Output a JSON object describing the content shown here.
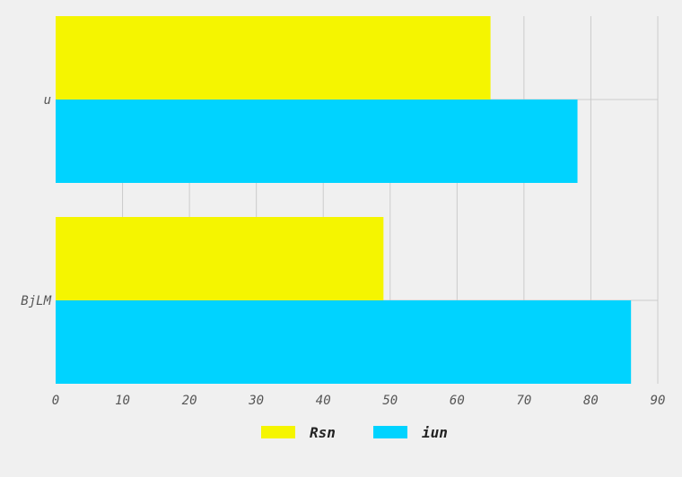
{
  "chart_data": {
    "type": "bar",
    "orientation": "horizontal",
    "categories": [
      "u",
      "BjLM"
    ],
    "series": [
      {
        "name": "Rsn",
        "values": [
          65,
          49
        ],
        "color": "#f5f500"
      },
      {
        "name": "iun",
        "values": [
          78,
          86
        ],
        "color": "#00d3ff"
      }
    ],
    "xlim": [
      0,
      90
    ],
    "xticks": [
      "0",
      "10",
      "20",
      "30",
      "40",
      "50",
      "60",
      "70",
      "80",
      "90"
    ],
    "grid": true,
    "legend_position": "bottom"
  }
}
